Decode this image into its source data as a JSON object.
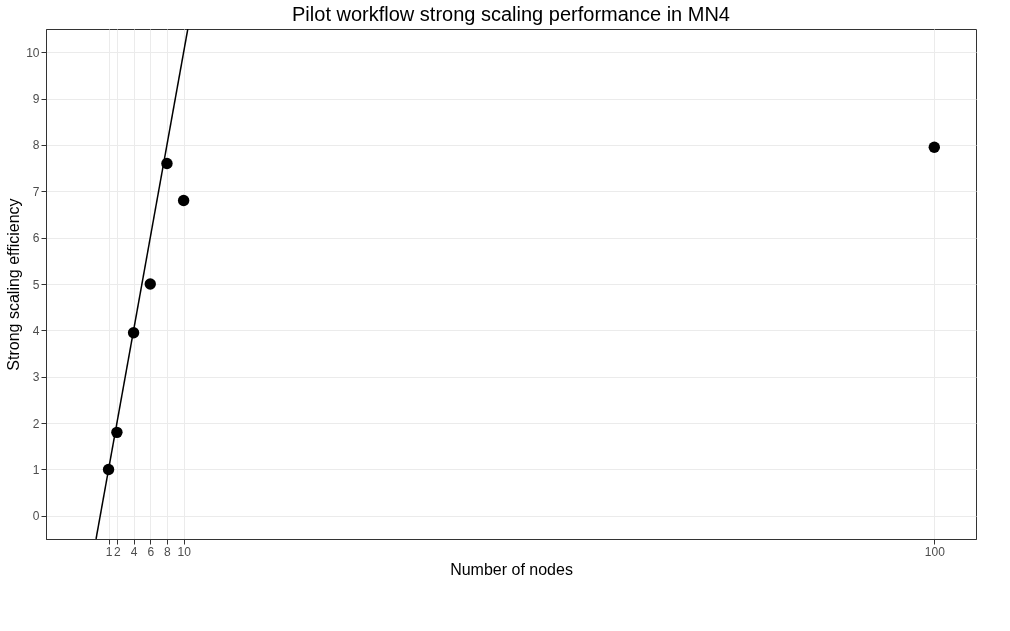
{
  "chart_data": {
    "type": "scatter",
    "title": "Pilot workflow strong scaling performance in MN4",
    "xlabel": "Number of nodes",
    "ylabel": "Strong scaling efficiency",
    "series": [
      {
        "color": "#000000",
        "marker": "circle",
        "x": [
          1,
          2,
          4,
          6,
          8,
          10,
          100
        ],
        "values": [
          1.0,
          1.8,
          3.95,
          5.0,
          7.6,
          6.8,
          7.95
        ]
      },
      {
        "type": "line",
        "color": "#000000",
        "x": [
          -0.5,
          10.5
        ],
        "values": [
          -0.5,
          10.5
        ]
      }
    ],
    "xlim": [
      -6.5,
      105
    ],
    "xticks": [
      1,
      2,
      4,
      6,
      8,
      10,
      100
    ],
    "ylim": [
      -0.5,
      10.5
    ],
    "yticks": [
      0,
      1,
      2,
      3,
      4,
      5,
      6,
      7,
      8,
      9,
      10
    ],
    "grid": true
  }
}
